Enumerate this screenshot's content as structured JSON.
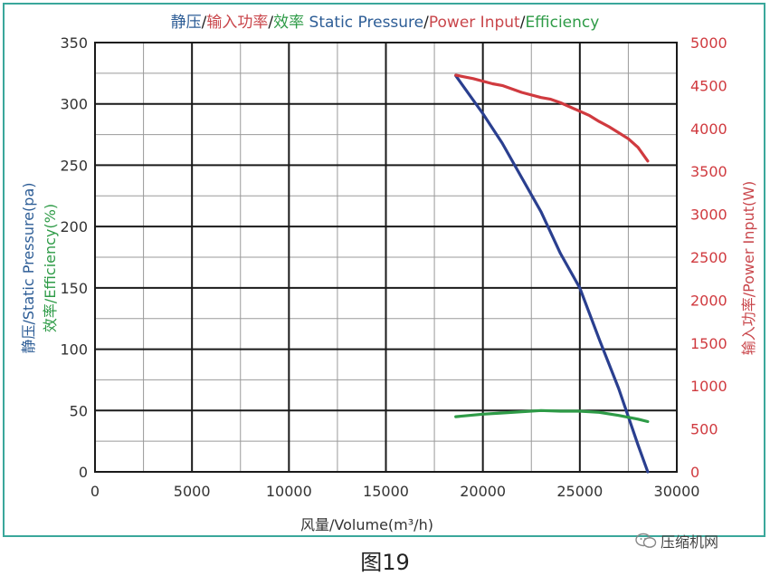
{
  "title": {
    "part1": "静压",
    "sep1": "/",
    "part2": "输入功率",
    "sep2": "/",
    "part3": "效率",
    "part4": "Static Pressure",
    "sep3": "/",
    "part5": "Power Input",
    "sep4": "/",
    "part6": "Efficiency"
  },
  "left_axis_label": {
    "line1": "静压/Static Pressure(pa)",
    "line2": "效率/Efficiency(%)"
  },
  "right_axis_label": "输入功率/Power Input(W)",
  "x_axis_label": "风量/Volume(m³/h)",
  "caption": "图19",
  "watermark": "压缩机网",
  "colors": {
    "static_pressure": "#2a3f8f",
    "power_input": "#d03a3f",
    "efficiency": "#2e9b47",
    "frame": "#3aa79b"
  },
  "chart_data": {
    "type": "line",
    "x_ticks": [
      "0",
      "5000",
      "10000",
      "15000",
      "20000",
      "25000",
      "30000"
    ],
    "y_left_ticks": [
      "0",
      "50",
      "100",
      "150",
      "200",
      "250",
      "300",
      "350"
    ],
    "y_right_ticks": [
      "0",
      "500",
      "1000",
      "1500",
      "2000",
      "2500",
      "3000",
      "3500",
      "4000",
      "4500",
      "5000"
    ],
    "xlim": [
      0,
      30000
    ],
    "ylim_left": [
      0,
      350
    ],
    "ylim_right": [
      0,
      5000
    ],
    "grid": true,
    "series": [
      {
        "key": "static_pressure",
        "axis": "left",
        "x": [
          18600,
          20000,
          21000,
          22000,
          23000,
          24000,
          25000,
          26000,
          27000,
          28000,
          28500
        ],
        "y": [
          323,
          292,
          268,
          240,
          212,
          178,
          150,
          108,
          68,
          22,
          0
        ]
      },
      {
        "key": "efficiency",
        "axis": "left",
        "x": [
          18600,
          20000,
          21000,
          22000,
          23000,
          24000,
          25000,
          26000,
          27000,
          28000,
          28500
        ],
        "y": [
          45,
          47,
          48,
          49,
          50,
          49.5,
          49.5,
          48.5,
          46,
          43,
          41
        ]
      },
      {
        "key": "power_input",
        "axis": "right",
        "x": [
          18600,
          19500,
          20500,
          21000,
          22000,
          23000,
          23500,
          24000,
          24500,
          25000,
          25500,
          26000,
          26500,
          27000,
          27500,
          28000,
          28500
        ],
        "y": [
          4620,
          4580,
          4520,
          4500,
          4420,
          4360,
          4340,
          4300,
          4250,
          4200,
          4150,
          4080,
          4020,
          3950,
          3880,
          3780,
          3620
        ]
      }
    ]
  }
}
